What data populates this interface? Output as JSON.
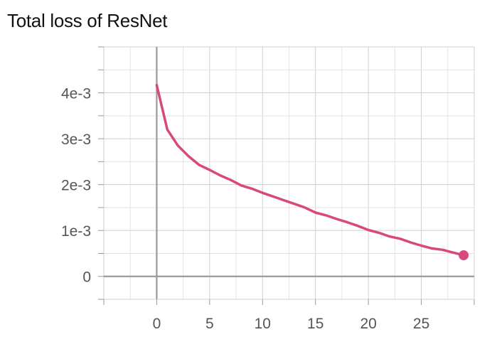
{
  "chart_data": {
    "type": "line",
    "title": "Total loss of ResNet",
    "xlabel": "",
    "ylabel": "",
    "xlim": [
      -5,
      30
    ],
    "ylim": [
      -0.0005,
      0.005
    ],
    "x_ticks": [
      0,
      5,
      10,
      15,
      20,
      25
    ],
    "x_tick_labels": [
      "0",
      "5",
      "10",
      "15",
      "20",
      "25"
    ],
    "y_ticks": [
      0,
      0.001,
      0.002,
      0.003,
      0.004
    ],
    "y_tick_labels": [
      "0",
      "1e-3",
      "2e-3",
      "3e-3",
      "4e-3"
    ],
    "grid": true,
    "legend": "none",
    "series": [
      {
        "color": "#d9487c",
        "x": [
          0,
          1,
          2,
          3,
          4,
          5,
          6,
          7,
          8,
          9,
          10,
          11,
          12,
          13,
          14,
          15,
          16,
          17,
          18,
          19,
          20,
          21,
          22,
          23,
          24,
          25,
          26,
          27,
          28,
          29
        ],
        "values": [
          0.00417,
          0.0032,
          0.00285,
          0.00262,
          0.00243,
          0.00232,
          0.0022,
          0.0021,
          0.00198,
          0.00191,
          0.00182,
          0.00174,
          0.00166,
          0.00158,
          0.0015,
          0.00139,
          0.00133,
          0.00125,
          0.00118,
          0.0011,
          0.00101,
          0.00095,
          0.00087,
          0.00082,
          0.00074,
          0.00067,
          0.00061,
          0.00058,
          0.00052,
          0.00046
        ]
      }
    ]
  }
}
